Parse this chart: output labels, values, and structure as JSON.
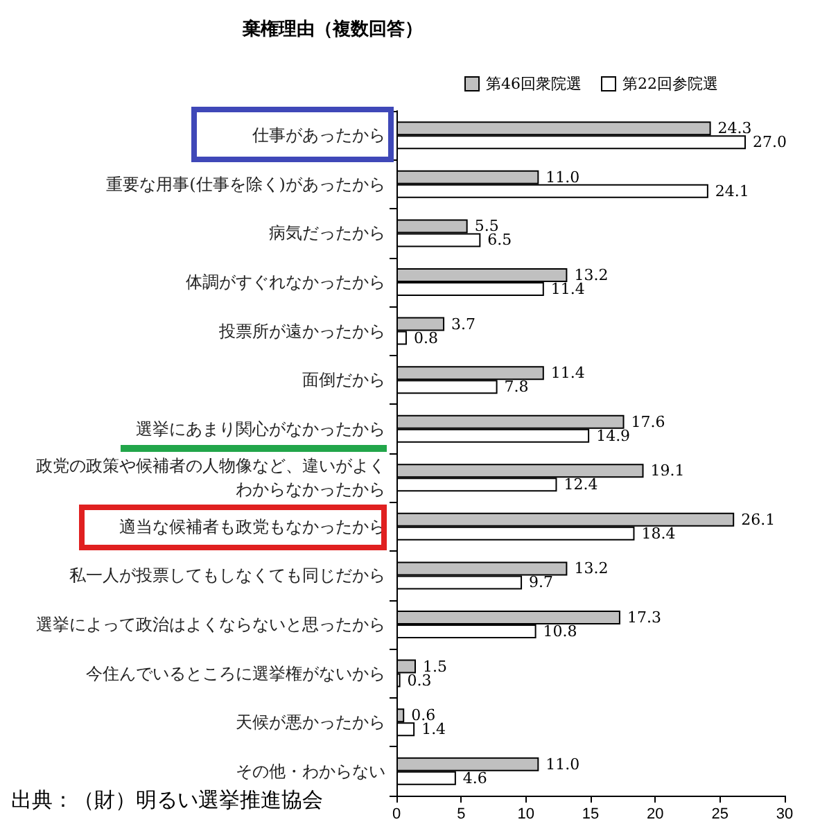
{
  "chart_data": {
    "type": "bar",
    "orientation": "horizontal",
    "title": "棄権理由（複数回答）",
    "categories": [
      "仕事があったから",
      "重要な用事(仕事を除く)があったから",
      "病気だったから",
      "体調がすぐれなかったから",
      "投票所が遠かったから",
      "面倒だから",
      "選挙にあまり関心がなかったから",
      "政党の政策や候補者の人物像など、違いがよくわからなかったから",
      "適当な候補者も政党もなかったから",
      "私一人が投票してもしなくても同じだから",
      "選挙によって政治はよくならないと思ったから",
      "今住んでいるところに選挙権がないから",
      "天候が悪かったから",
      "その他・わからない"
    ],
    "series": [
      {
        "name": "第46回衆院選",
        "color": "#c0c0c0",
        "values": [
          24.3,
          11.0,
          5.5,
          13.2,
          3.7,
          11.4,
          17.6,
          19.1,
          26.1,
          13.2,
          17.3,
          1.5,
          0.6,
          11.0
        ],
        "value_labels": [
          "24.3",
          "11.0",
          "5.5",
          "13.2",
          "3.7",
          "11.4",
          "17.6",
          "19.1",
          "26.1",
          "13.2",
          "17.3",
          "1.5",
          "0.6",
          "11.0"
        ]
      },
      {
        "name": "第22回参院選",
        "color": "#ffffff",
        "values": [
          27.0,
          24.1,
          6.5,
          11.4,
          0.8,
          7.8,
          14.9,
          12.4,
          18.4,
          9.7,
          10.8,
          0.3,
          1.4,
          4.6
        ],
        "value_labels": [
          "27.0",
          "24.1",
          "6.5",
          "11.4",
          "0.8",
          "7.8",
          "14.9",
          "12.4",
          "18.4",
          "9.7",
          "10.8",
          "0.3",
          "1.4",
          "4.6"
        ]
      }
    ],
    "xlim": [
      0,
      30
    ],
    "xticks": [
      0,
      5,
      10,
      15,
      20,
      25,
      30
    ],
    "grid": false,
    "legend": "top",
    "annotations": [
      "出典：（財）明るい選挙推進協会"
    ]
  }
}
